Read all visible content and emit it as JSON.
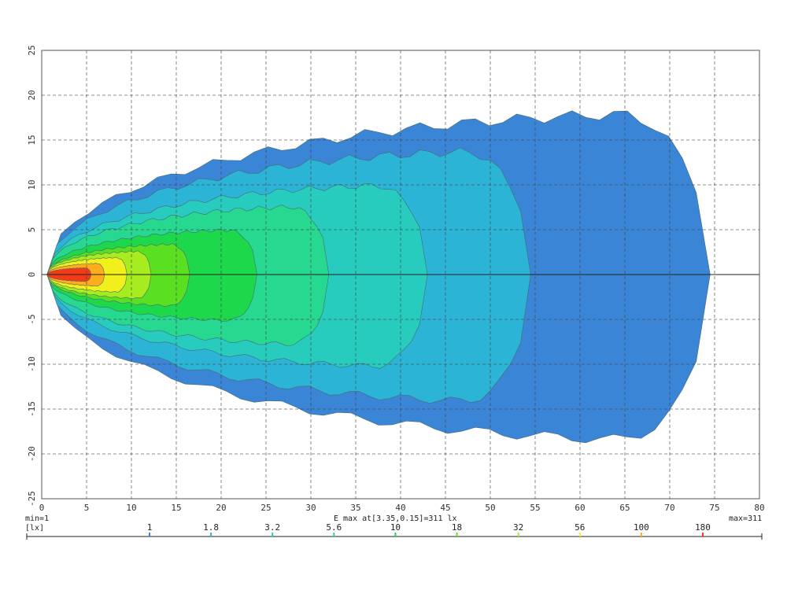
{
  "chart_data": {
    "type": "heatmap",
    "subtype": "isolux-contour",
    "xlim": [
      0,
      80
    ],
    "ylim": [
      -25,
      25
    ],
    "x_ticks": [
      0,
      5,
      10,
      15,
      20,
      25,
      30,
      35,
      40,
      45,
      50,
      55,
      60,
      65,
      70,
      75,
      80
    ],
    "y_ticks": [
      25,
      20,
      15,
      10,
      5,
      0,
      -5,
      -10,
      -15,
      -20,
      -25
    ],
    "grid": true,
    "grid_style": "dashed",
    "min_label": "min=1",
    "max_label": "max=311",
    "emax_label": "E max at[3.35,0.15]=311 lx",
    "unit_label": "[lx]",
    "levels": [
      {
        "value": "1",
        "color": "#3a85d6",
        "reach": 74.5,
        "half_width": 18.0
      },
      {
        "value": "1.8",
        "color": "#2cb4d6",
        "reach": 54.5,
        "half_width": 13.8
      },
      {
        "value": "3.2",
        "color": "#27ccbe",
        "reach": 43.0,
        "half_width": 10.0
      },
      {
        "value": "5.6",
        "color": "#26d890",
        "reach": 32.0,
        "half_width": 7.6
      },
      {
        "value": "10",
        "color": "#1dd84a",
        "reach": 24.0,
        "half_width": 5.0
      },
      {
        "value": "18",
        "color": "#5ae020",
        "reach": 16.5,
        "half_width": 3.4
      },
      {
        "value": "32",
        "color": "#a6ec1e",
        "reach": 12.2,
        "half_width": 2.6
      },
      {
        "value": "56",
        "color": "#f2f01c",
        "reach": 9.5,
        "half_width": 1.9
      },
      {
        "value": "100",
        "color": "#ffad1c",
        "reach": 7.0,
        "half_width": 1.25
      },
      {
        "value": "180",
        "color": "#f43a16",
        "reach": 5.5,
        "half_width": 0.75
      }
    ],
    "emax_point": [
      3.35,
      0.15
    ]
  }
}
